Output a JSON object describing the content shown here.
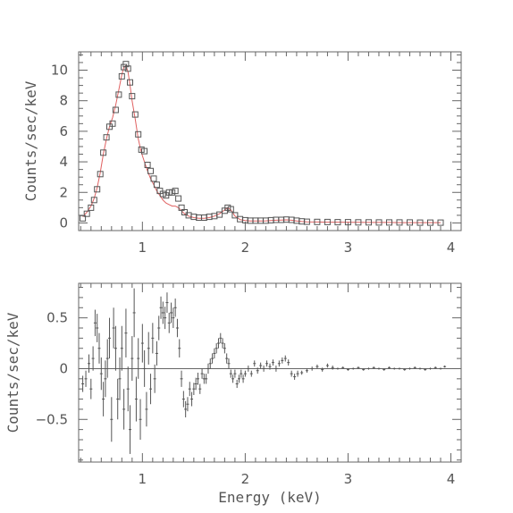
{
  "colors": {
    "data": "#555555",
    "model": "#e06060",
    "axis": "#666666",
    "text": "#555555"
  },
  "chart_data": [
    {
      "type": "scatter",
      "title": "",
      "xlabel": "",
      "ylabel": "Counts/sec/keV",
      "xlim": [
        0.38,
        4.1
      ],
      "ylim": [
        -0.5,
        11.2
      ],
      "xticks": [
        1,
        2,
        3,
        4
      ],
      "xtick_labels": [
        "1",
        "2",
        "3",
        "4"
      ],
      "yticks": [
        0,
        2,
        4,
        6,
        8,
        10
      ],
      "ytick_labels": [
        "0",
        "2",
        "4",
        "6",
        "8",
        "10"
      ],
      "marker": "open-square",
      "series": [
        {
          "role": "data",
          "x": [
            0.42,
            0.46,
            0.5,
            0.53,
            0.56,
            0.59,
            0.62,
            0.65,
            0.68,
            0.71,
            0.74,
            0.77,
            0.8,
            0.82,
            0.84,
            0.86,
            0.88,
            0.9,
            0.93,
            0.96,
            0.99,
            1.02,
            1.05,
            1.08,
            1.11,
            1.14,
            1.17,
            1.2,
            1.23,
            1.26,
            1.29,
            1.32,
            1.35,
            1.38,
            1.41,
            1.45,
            1.5,
            1.55,
            1.6,
            1.65,
            1.7,
            1.75,
            1.8,
            1.83,
            1.86,
            1.9,
            1.95,
            2.0,
            2.05,
            2.1,
            2.15,
            2.2,
            2.25,
            2.3,
            2.35,
            2.4,
            2.45,
            2.5,
            2.55,
            2.6,
            2.7,
            2.8,
            2.9,
            3.0,
            3.1,
            3.2,
            3.3,
            3.4,
            3.5,
            3.6,
            3.7,
            3.8,
            3.9
          ],
          "y": [
            0.3,
            0.6,
            1.0,
            1.5,
            2.2,
            3.2,
            4.6,
            5.6,
            6.3,
            6.5,
            7.4,
            8.4,
            9.6,
            10.2,
            10.4,
            10.1,
            9.2,
            8.3,
            7.1,
            5.8,
            4.8,
            4.7,
            3.8,
            3.4,
            2.9,
            2.5,
            2.1,
            1.9,
            1.8,
            2.0,
            2.0,
            2.1,
            1.6,
            1.0,
            0.7,
            0.5,
            0.4,
            0.35,
            0.35,
            0.4,
            0.45,
            0.55,
            0.8,
            1.0,
            0.9,
            0.5,
            0.25,
            0.18,
            0.15,
            0.15,
            0.15,
            0.15,
            0.18,
            0.2,
            0.2,
            0.22,
            0.2,
            0.15,
            0.1,
            0.08,
            0.07,
            0.06,
            0.05,
            0.05,
            0.04,
            0.04,
            0.03,
            0.03,
            0.03,
            0.03,
            0.02,
            0.02,
            0.02
          ]
        },
        {
          "role": "model",
          "x": [
            0.42,
            0.46,
            0.5,
            0.53,
            0.56,
            0.59,
            0.62,
            0.65,
            0.68,
            0.71,
            0.74,
            0.77,
            0.8,
            0.82,
            0.84,
            0.86,
            0.88,
            0.9,
            0.93,
            0.96,
            0.99,
            1.02,
            1.05,
            1.08,
            1.11,
            1.14,
            1.17,
            1.2,
            1.23,
            1.26,
            1.29,
            1.32,
            1.35,
            1.38,
            1.41,
            1.45,
            1.5,
            1.55,
            1.6,
            1.65,
            1.7,
            1.75,
            1.8,
            1.83,
            1.86,
            1.9,
            1.95,
            2.0,
            2.05,
            2.1,
            2.15,
            2.2,
            2.25,
            2.3,
            2.35,
            2.4,
            2.45,
            2.5,
            2.55,
            2.6,
            2.7,
            2.8,
            2.9,
            3.0,
            3.1,
            3.2,
            3.3,
            3.4,
            3.5,
            3.6,
            3.7,
            3.8,
            3.9
          ],
          "y": [
            0.4,
            0.7,
            1.1,
            1.6,
            2.3,
            3.3,
            4.5,
            5.5,
            6.3,
            6.9,
            7.7,
            8.7,
            9.7,
            10.2,
            10.3,
            9.9,
            9.0,
            8.0,
            6.8,
            5.5,
            4.6,
            4.0,
            3.4,
            2.9,
            2.5,
            2.1,
            1.8,
            1.5,
            1.3,
            1.2,
            1.1,
            1.1,
            1.0,
            0.8,
            0.6,
            0.45,
            0.35,
            0.3,
            0.3,
            0.35,
            0.45,
            0.6,
            0.85,
            1.0,
            0.85,
            0.45,
            0.22,
            0.16,
            0.13,
            0.13,
            0.13,
            0.14,
            0.16,
            0.18,
            0.19,
            0.2,
            0.18,
            0.13,
            0.09,
            0.07,
            0.06,
            0.05,
            0.05,
            0.04,
            0.04,
            0.03,
            0.03,
            0.03,
            0.02,
            0.02,
            0.02,
            0.02,
            0.02
          ]
        }
      ]
    },
    {
      "type": "scatter",
      "title": "",
      "xlabel": "Energy (keV)",
      "ylabel": "Counts/sec/keV",
      "xlim": [
        0.38,
        4.1
      ],
      "ylim": [
        -0.92,
        0.84
      ],
      "xticks": [
        1,
        2,
        3,
        4
      ],
      "xtick_labels": [
        "1",
        "2",
        "3",
        "4"
      ],
      "yticks": [
        -0.5,
        0,
        0.5
      ],
      "ytick_labels": [
        "−0.5",
        "0",
        "0.5"
      ],
      "reference_line": 0,
      "marker": "errorbar",
      "series": [
        {
          "role": "residuals",
          "x": [
            0.42,
            0.45,
            0.48,
            0.5,
            0.52,
            0.54,
            0.56,
            0.58,
            0.6,
            0.62,
            0.64,
            0.66,
            0.68,
            0.7,
            0.72,
            0.74,
            0.76,
            0.78,
            0.8,
            0.82,
            0.84,
            0.86,
            0.88,
            0.9,
            0.92,
            0.94,
            0.96,
            0.98,
            1.0,
            1.02,
            1.04,
            1.06,
            1.08,
            1.1,
            1.12,
            1.14,
            1.16,
            1.18,
            1.2,
            1.22,
            1.24,
            1.26,
            1.28,
            1.3,
            1.32,
            1.34,
            1.36,
            1.38,
            1.4,
            1.42,
            1.44,
            1.46,
            1.48,
            1.5,
            1.52,
            1.54,
            1.56,
            1.58,
            1.6,
            1.62,
            1.64,
            1.66,
            1.68,
            1.7,
            1.72,
            1.74,
            1.76,
            1.78,
            1.8,
            1.82,
            1.84,
            1.86,
            1.88,
            1.9,
            1.92,
            1.94,
            1.96,
            1.98,
            2.0,
            2.03,
            2.06,
            2.09,
            2.12,
            2.15,
            2.18,
            2.21,
            2.24,
            2.27,
            2.3,
            2.33,
            2.36,
            2.39,
            2.42,
            2.45,
            2.48,
            2.51,
            2.55,
            2.6,
            2.65,
            2.7,
            2.75,
            2.8,
            2.85,
            2.9,
            2.95,
            3.0,
            3.05,
            3.1,
            3.15,
            3.2,
            3.25,
            3.3,
            3.35,
            3.4,
            3.45,
            3.5,
            3.55,
            3.6,
            3.65,
            3.7,
            3.75,
            3.8,
            3.85,
            3.9,
            3.94
          ],
          "y": [
            -0.15,
            -0.1,
            0.05,
            -0.2,
            0.1,
            0.45,
            0.4,
            0.2,
            -0.05,
            -0.3,
            -0.1,
            0.1,
            0.3,
            -0.5,
            0.4,
            0.2,
            -0.3,
            -0.1,
            0.2,
            -0.4,
            0.35,
            -0.2,
            -0.6,
            0.1,
            0.55,
            -0.3,
            0.1,
            -0.5,
            0.25,
            0.0,
            -0.4,
            0.2,
            -0.2,
            0.3,
            -0.1,
            0.15,
            0.4,
            0.6,
            0.55,
            0.5,
            0.65,
            0.45,
            0.55,
            0.5,
            0.6,
            0.4,
            0.2,
            -0.1,
            -0.3,
            -0.4,
            -0.35,
            -0.2,
            -0.3,
            -0.2,
            -0.15,
            -0.1,
            -0.2,
            -0.05,
            -0.1,
            -0.1,
            0.0,
            0.05,
            0.1,
            0.15,
            0.2,
            0.25,
            0.3,
            0.25,
            0.2,
            0.1,
            0.05,
            -0.05,
            -0.1,
            -0.05,
            -0.15,
            -0.1,
            -0.05,
            -0.1,
            -0.05,
            0.0,
            -0.05,
            0.05,
            -0.02,
            0.03,
            0.0,
            0.05,
            0.02,
            0.06,
            0.0,
            0.05,
            0.08,
            0.1,
            0.06,
            -0.05,
            -0.08,
            -0.05,
            -0.04,
            -0.02,
            0.0,
            0.02,
            -0.01,
            0.03,
            0.01,
            0.0,
            0.01,
            -0.01,
            0.0,
            0.01,
            -0.01,
            0.0,
            0.01,
            0.0,
            -0.01,
            0.01,
            0.0,
            0.0,
            -0.01,
            0.0,
            0.01,
            0.0,
            -0.01,
            0.0,
            0.01,
            0.0,
            0.02
          ],
          "err": [
            0.08,
            0.08,
            0.09,
            0.1,
            0.12,
            0.13,
            0.14,
            0.15,
            0.16,
            0.17,
            0.18,
            0.19,
            0.2,
            0.22,
            0.2,
            0.22,
            0.2,
            0.21,
            0.22,
            0.2,
            0.24,
            0.22,
            0.24,
            0.22,
            0.24,
            0.22,
            0.2,
            0.2,
            0.19,
            0.18,
            0.17,
            0.16,
            0.15,
            0.15,
            0.14,
            0.12,
            0.12,
            0.11,
            0.11,
            0.11,
            0.1,
            0.1,
            0.1,
            0.1,
            0.09,
            0.09,
            0.09,
            0.08,
            0.08,
            0.08,
            0.07,
            0.07,
            0.07,
            0.06,
            0.06,
            0.06,
            0.05,
            0.05,
            0.05,
            0.05,
            0.05,
            0.05,
            0.05,
            0.05,
            0.05,
            0.05,
            0.05,
            0.05,
            0.05,
            0.05,
            0.05,
            0.04,
            0.04,
            0.04,
            0.04,
            0.04,
            0.04,
            0.04,
            0.03,
            0.03,
            0.03,
            0.03,
            0.03,
            0.03,
            0.03,
            0.03,
            0.03,
            0.03,
            0.03,
            0.03,
            0.03,
            0.03,
            0.03,
            0.03,
            0.03,
            0.03,
            0.02,
            0.02,
            0.02,
            0.02,
            0.02,
            0.02,
            0.02,
            0.01,
            0.01,
            0.01,
            0.01,
            0.01,
            0.01,
            0.01,
            0.01,
            0.01,
            0.01,
            0.01,
            0.01,
            0.01,
            0.01,
            0.01,
            0.01,
            0.01,
            0.01,
            0.01,
            0.01,
            0.01,
            0.01
          ]
        }
      ]
    }
  ]
}
